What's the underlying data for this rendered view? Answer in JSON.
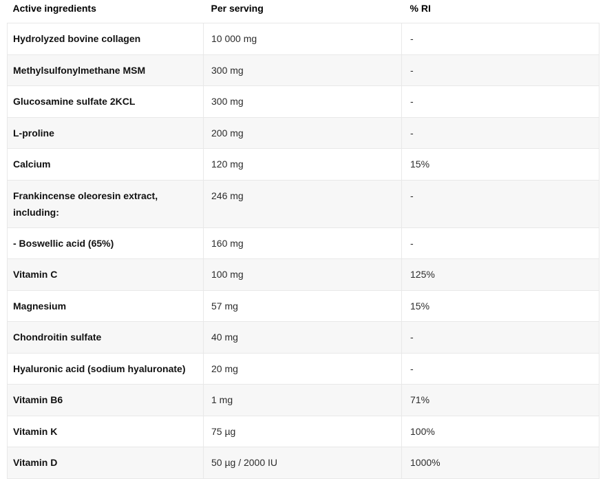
{
  "chart_data": {
    "type": "table",
    "columns": [
      "Active ingredients",
      "Per serving",
      "% RI"
    ],
    "rows": [
      {
        "ingredient": "Hydrolyzed bovine collagen",
        "per_serving": "10 000 mg",
        "ri": "-"
      },
      {
        "ingredient": "Methylsulfonylmethane MSM",
        "per_serving": "300 mg",
        "ri": "-"
      },
      {
        "ingredient": "Glucosamine sulfate 2KCL",
        "per_serving": "300 mg",
        "ri": "-"
      },
      {
        "ingredient": "L-proline",
        "per_serving": "200 mg",
        "ri": "-"
      },
      {
        "ingredient": "Calcium",
        "per_serving": "120 mg",
        "ri": "15%"
      },
      {
        "ingredient": "Frankincense oleoresin extract, including:",
        "per_serving": "246 mg",
        "ri": "-"
      },
      {
        "ingredient": "- Boswellic acid (65%)",
        "per_serving": "160 mg",
        "ri": "-"
      },
      {
        "ingredient": "Vitamin C",
        "per_serving": "100 mg",
        "ri": "125%"
      },
      {
        "ingredient": "Magnesium",
        "per_serving": "57 mg",
        "ri": "15%"
      },
      {
        "ingredient": "Chondroitin sulfate",
        "per_serving": "40 mg",
        "ri": "-"
      },
      {
        "ingredient": "Hyaluronic acid (sodium hyaluronate)",
        "per_serving": "20 mg",
        "ri": "-"
      },
      {
        "ingredient": "Vitamin B6",
        "per_serving": "1 mg",
        "ri": "71%"
      },
      {
        "ingredient": "Vitamin K",
        "per_serving": "75 µg",
        "ri": "100%"
      },
      {
        "ingredient": "Vitamin D",
        "per_serving": "50 µg / 2000 IU",
        "ri": "1000%"
      }
    ]
  },
  "colors": {
    "row_stripe": "#f7f7f7",
    "border": "#e8e8e8",
    "header_text": "#000000",
    "body_text": "#2b2b2b"
  }
}
